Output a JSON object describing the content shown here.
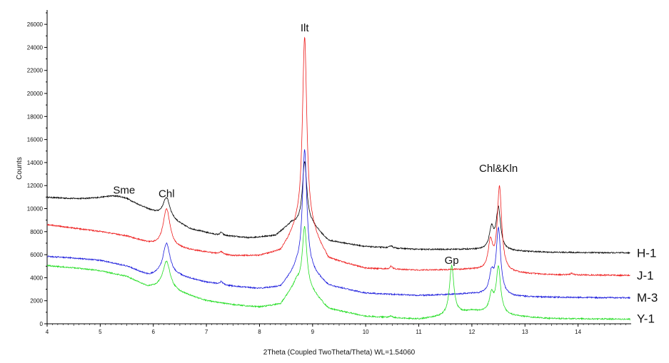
{
  "chart_data": {
    "type": "line",
    "xlabel": "2Theta (Coupled TwoTheta/Theta) WL=1.54060",
    "ylabel": "Counts",
    "xlim": [
      4,
      15
    ],
    "ylim": [
      0,
      27000
    ],
    "x_ticks": [
      4,
      5,
      6,
      7,
      8,
      9,
      10,
      11,
      12,
      13,
      14
    ],
    "y_ticks": [
      0,
      2000,
      4000,
      6000,
      8000,
      10000,
      12000,
      14000,
      16000,
      18000,
      20000,
      22000,
      24000,
      26000
    ],
    "grid": false,
    "legend": "none",
    "series": [
      {
        "name": "H-1",
        "color": "#000000",
        "baseline": [
          [
            4.0,
            10950
          ],
          [
            4.5,
            10800
          ],
          [
            5.0,
            10700
          ],
          [
            5.5,
            10500
          ],
          [
            5.8,
            10000
          ],
          [
            6.0,
            9600
          ],
          [
            6.4,
            8800
          ],
          [
            6.7,
            8200
          ],
          [
            7.2,
            7700
          ],
          [
            7.8,
            7450
          ],
          [
            8.3,
            7650
          ],
          [
            8.6,
            8700
          ],
          [
            9.0,
            8500
          ],
          [
            9.3,
            7200
          ],
          [
            10.0,
            6700
          ],
          [
            11.0,
            6450
          ],
          [
            12.0,
            6450
          ],
          [
            12.8,
            6300
          ],
          [
            13.5,
            6200
          ],
          [
            15.0,
            6150
          ]
        ],
        "peaks": [
          [
            5.3,
            500,
            0.35
          ],
          [
            6.25,
            1800,
            0.08
          ],
          [
            7.28,
            250,
            0.03
          ],
          [
            8.85,
            5500,
            0.05
          ],
          [
            10.48,
            200,
            0.03
          ],
          [
            12.37,
            1800,
            0.05
          ],
          [
            12.5,
            3600,
            0.05
          ]
        ]
      },
      {
        "name": "J-1",
        "color": "#ee1c1c",
        "baseline": [
          [
            4.0,
            8600
          ],
          [
            4.5,
            8300
          ],
          [
            5.0,
            8000
          ],
          [
            5.5,
            7600
          ],
          [
            5.9,
            7000
          ],
          [
            6.2,
            6600
          ],
          [
            6.5,
            6500
          ],
          [
            7.0,
            6200
          ],
          [
            7.5,
            5900
          ],
          [
            8.0,
            5900
          ],
          [
            8.4,
            6300
          ],
          [
            8.7,
            8200
          ],
          [
            9.0,
            7800
          ],
          [
            9.3,
            5600
          ],
          [
            10.0,
            4800
          ],
          [
            11.0,
            4650
          ],
          [
            12.0,
            4700
          ],
          [
            12.8,
            4400
          ],
          [
            13.5,
            4250
          ],
          [
            15.0,
            4200
          ]
        ],
        "peaks": [
          [
            6.25,
            3400,
            0.08
          ],
          [
            7.28,
            200,
            0.03
          ],
          [
            8.85,
            16900,
            0.05
          ],
          [
            10.48,
            250,
            0.03
          ],
          [
            12.35,
            2400,
            0.05
          ],
          [
            12.52,
            7300,
            0.05
          ],
          [
            13.88,
            150,
            0.03
          ]
        ]
      },
      {
        "name": "M-3",
        "color": "#1a1adc",
        "baseline": [
          [
            4.0,
            5850
          ],
          [
            4.5,
            5700
          ],
          [
            5.0,
            5500
          ],
          [
            5.5,
            5000
          ],
          [
            5.9,
            4200
          ],
          [
            6.2,
            4300
          ],
          [
            6.5,
            4100
          ],
          [
            7.0,
            3600
          ],
          [
            7.5,
            3250
          ],
          [
            8.0,
            3050
          ],
          [
            8.4,
            3200
          ],
          [
            8.7,
            4800
          ],
          [
            9.0,
            4400
          ],
          [
            9.3,
            3300
          ],
          [
            10.0,
            2650
          ],
          [
            11.0,
            2450
          ],
          [
            12.0,
            2600
          ],
          [
            12.8,
            2350
          ],
          [
            13.5,
            2300
          ],
          [
            15.0,
            2250
          ]
        ],
        "peaks": [
          [
            6.25,
            2700,
            0.08
          ],
          [
            7.28,
            250,
            0.03
          ],
          [
            8.85,
            10500,
            0.05
          ],
          [
            12.37,
            1700,
            0.05
          ],
          [
            12.5,
            5700,
            0.05
          ]
        ]
      },
      {
        "name": "Y-1",
        "color": "#22dd22",
        "baseline": [
          [
            4.0,
            5050
          ],
          [
            4.5,
            4850
          ],
          [
            5.0,
            4600
          ],
          [
            5.5,
            4100
          ],
          [
            5.9,
            3200
          ],
          [
            6.2,
            3200
          ],
          [
            6.5,
            2700
          ],
          [
            7.0,
            2000
          ],
          [
            7.5,
            1650
          ],
          [
            8.0,
            1450
          ],
          [
            8.4,
            1700
          ],
          [
            8.7,
            3600
          ],
          [
            9.0,
            2700
          ],
          [
            9.3,
            1300
          ],
          [
            10.0,
            650
          ],
          [
            11.0,
            400
          ],
          [
            11.5,
            650
          ],
          [
            12.0,
            1100
          ],
          [
            12.8,
            650
          ],
          [
            13.5,
            450
          ],
          [
            15.0,
            400
          ]
        ],
        "peaks": [
          [
            6.25,
            2300,
            0.08
          ],
          [
            8.85,
            5300,
            0.05
          ],
          [
            10.48,
            150,
            0.03
          ],
          [
            11.62,
            4300,
            0.05
          ],
          [
            12.37,
            1500,
            0.05
          ],
          [
            12.5,
            4000,
            0.05
          ]
        ]
      }
    ],
    "annotations": [
      {
        "text": "Sme",
        "x": 5.45,
        "y": 11300
      },
      {
        "text": "Chl",
        "x": 6.25,
        "y": 11000
      },
      {
        "text": "Ilt",
        "x": 8.85,
        "y": 25400
      },
      {
        "text": "Gp",
        "x": 11.62,
        "y": 5200
      },
      {
        "text": "Chl&Kln",
        "x": 12.5,
        "y": 13200
      }
    ]
  }
}
